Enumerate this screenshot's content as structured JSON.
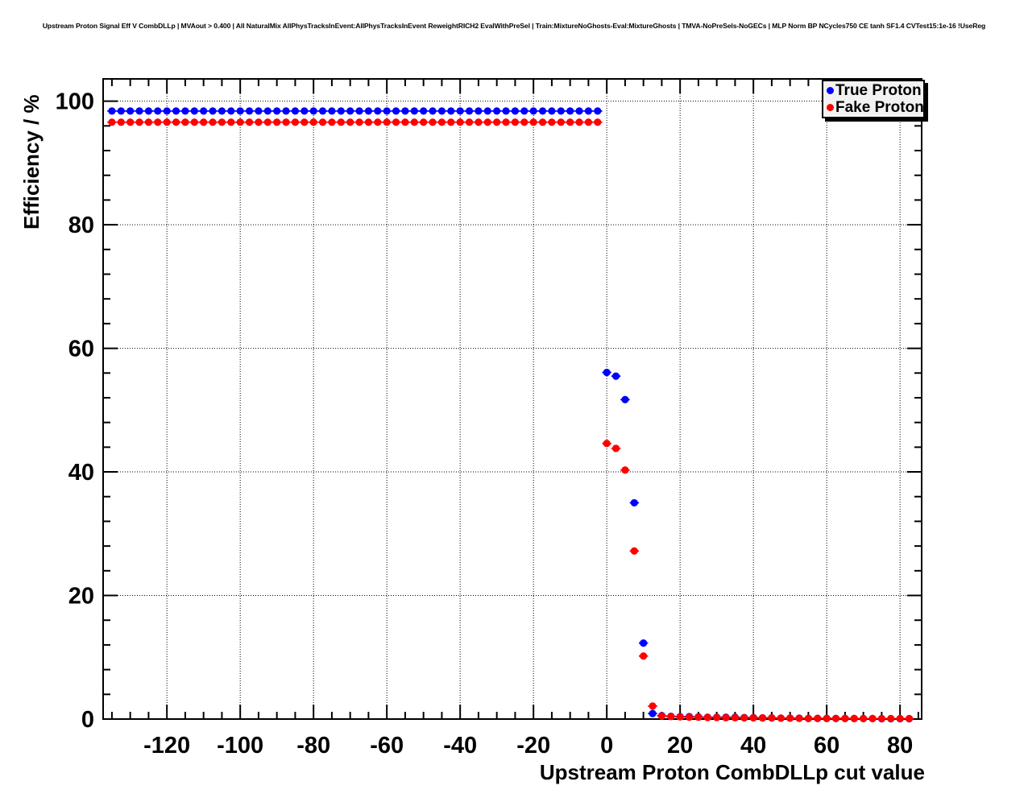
{
  "title": "Upstream Proton Signal Eff V CombDLLp | MVAout > 0.400 | All NaturalMix AllPhysTracksInEvent:AllPhysTracksInEvent ReweightRICH2 EvalWithPreSel | Train:MixtureNoGhosts-Eval:MixtureGhosts | TMVA-NoPreSels-NoGECs | MLP Norm BP NCycles750 CE tanh SF1.4 CVTest15:1e-16 !UseReg",
  "legend": {
    "entries": [
      {
        "label": "True Proton",
        "color": "#0000ff",
        "marker": "filled-circle"
      },
      {
        "label": "Fake Proton",
        "color": "#ff0000",
        "marker": "filled-circle"
      }
    ]
  },
  "colors": {
    "true_proton": "#0000ff",
    "fake_proton": "#ff0000",
    "frame": "#000000",
    "grid": "#000000",
    "background": "#ffffff",
    "legend_fill": "#f2f2f2"
  },
  "chart_data": {
    "type": "scatter",
    "title": "Upstream Proton Signal Eff V CombDLLp | MVAout > 0.400 | All NaturalMix AllPhysTracksInEvent:AllPhysTracksInEvent ReweightRICH2 EvalWithPreSel | Train:MixtureNoGhosts-Eval:MixtureGhosts | TMVA-NoPreSels-NoGECs | MLP Norm BP NCycles750 CE tanh SF1.4 CVTest15:1e-16 !UseReg",
    "xlabel": "Upstream Proton CombDLLp cut value",
    "ylabel": "Efficiency / %",
    "xlim": [
      -137.4,
      85.9
    ],
    "ylim": [
      0,
      103.6
    ],
    "xticks": [
      -120,
      -100,
      -80,
      -60,
      -40,
      -20,
      0,
      20,
      40,
      60,
      80
    ],
    "yticks": [
      0,
      20,
      40,
      60,
      80,
      100
    ],
    "x_minor_step": 5,
    "y_minor_step": 4,
    "grid": true,
    "legend_position": "top-right",
    "marker_style": "filled-circle",
    "x_error_half_width": 1.25,
    "series": [
      {
        "name": "True Proton",
        "color": "#0000ff",
        "points": [
          [
            -135,
            98.4
          ],
          [
            -132.5,
            98.4
          ],
          [
            -130,
            98.4
          ],
          [
            -127.5,
            98.4
          ],
          [
            -125,
            98.4
          ],
          [
            -122.5,
            98.4
          ],
          [
            -120,
            98.4
          ],
          [
            -117.5,
            98.4
          ],
          [
            -115,
            98.4
          ],
          [
            -112.5,
            98.4
          ],
          [
            -110,
            98.4
          ],
          [
            -107.5,
            98.4
          ],
          [
            -105,
            98.4
          ],
          [
            -102.5,
            98.4
          ],
          [
            -100,
            98.4
          ],
          [
            -97.5,
            98.4
          ],
          [
            -95,
            98.4
          ],
          [
            -92.5,
            98.4
          ],
          [
            -90,
            98.4
          ],
          [
            -87.5,
            98.4
          ],
          [
            -85,
            98.4
          ],
          [
            -82.5,
            98.4
          ],
          [
            -80,
            98.4
          ],
          [
            -77.5,
            98.4
          ],
          [
            -75,
            98.4
          ],
          [
            -72.5,
            98.4
          ],
          [
            -70,
            98.4
          ],
          [
            -67.5,
            98.4
          ],
          [
            -65,
            98.4
          ],
          [
            -62.5,
            98.4
          ],
          [
            -60,
            98.4
          ],
          [
            -57.5,
            98.4
          ],
          [
            -55,
            98.4
          ],
          [
            -52.5,
            98.4
          ],
          [
            -50,
            98.4
          ],
          [
            -47.5,
            98.4
          ],
          [
            -45,
            98.4
          ],
          [
            -42.5,
            98.4
          ],
          [
            -40,
            98.4
          ],
          [
            -37.5,
            98.4
          ],
          [
            -35,
            98.4
          ],
          [
            -32.5,
            98.4
          ],
          [
            -30,
            98.4
          ],
          [
            -27.5,
            98.4
          ],
          [
            -25,
            98.4
          ],
          [
            -22.5,
            98.4
          ],
          [
            -20,
            98.4
          ],
          [
            -17.5,
            98.4
          ],
          [
            -15,
            98.4
          ],
          [
            -12.5,
            98.4
          ],
          [
            -10,
            98.4
          ],
          [
            -7.5,
            98.4
          ],
          [
            -5,
            98.4
          ],
          [
            -2.5,
            98.4
          ],
          [
            0,
            56.1
          ],
          [
            2.5,
            55.5
          ],
          [
            5,
            51.7
          ],
          [
            7.5,
            35.0
          ],
          [
            10,
            12.3
          ],
          [
            12.5,
            0.9
          ],
          [
            15,
            0.55
          ],
          [
            17.5,
            0.45
          ],
          [
            20,
            0.4
          ],
          [
            22.5,
            0.4
          ],
          [
            25,
            0.35
          ],
          [
            27.5,
            0.3
          ],
          [
            30,
            0.3
          ],
          [
            32.5,
            0.3
          ],
          [
            35,
            0.3
          ],
          [
            37.5,
            0.25
          ],
          [
            40,
            0.25
          ],
          [
            42.5,
            0.2
          ],
          [
            45,
            0.2
          ],
          [
            47.5,
            0.15
          ],
          [
            50,
            0.15
          ],
          [
            52.5,
            0.15
          ],
          [
            55,
            0.1
          ],
          [
            57.5,
            0.1
          ],
          [
            60,
            0.1
          ],
          [
            62.5,
            0.1
          ],
          [
            65,
            0.1
          ],
          [
            67.5,
            0.08
          ],
          [
            70,
            0.08
          ],
          [
            72.5,
            0.08
          ],
          [
            75,
            0.05
          ],
          [
            77.5,
            0.05
          ],
          [
            80,
            0.05
          ],
          [
            82.5,
            0.05
          ]
        ]
      },
      {
        "name": "Fake Proton",
        "color": "#ff0000",
        "points": [
          [
            -135,
            96.6
          ],
          [
            -132.5,
            96.6
          ],
          [
            -130,
            96.6
          ],
          [
            -127.5,
            96.6
          ],
          [
            -125,
            96.6
          ],
          [
            -122.5,
            96.6
          ],
          [
            -120,
            96.6
          ],
          [
            -117.5,
            96.6
          ],
          [
            -115,
            96.6
          ],
          [
            -112.5,
            96.6
          ],
          [
            -110,
            96.6
          ],
          [
            -107.5,
            96.6
          ],
          [
            -105,
            96.6
          ],
          [
            -102.5,
            96.6
          ],
          [
            -100,
            96.6
          ],
          [
            -97.5,
            96.6
          ],
          [
            -95,
            96.6
          ],
          [
            -92.5,
            96.6
          ],
          [
            -90,
            96.6
          ],
          [
            -87.5,
            96.6
          ],
          [
            -85,
            96.6
          ],
          [
            -82.5,
            96.6
          ],
          [
            -80,
            96.6
          ],
          [
            -77.5,
            96.6
          ],
          [
            -75,
            96.6
          ],
          [
            -72.5,
            96.6
          ],
          [
            -70,
            96.6
          ],
          [
            -67.5,
            96.6
          ],
          [
            -65,
            96.6
          ],
          [
            -62.5,
            96.6
          ],
          [
            -60,
            96.6
          ],
          [
            -57.5,
            96.6
          ],
          [
            -55,
            96.6
          ],
          [
            -52.5,
            96.6
          ],
          [
            -50,
            96.6
          ],
          [
            -47.5,
            96.6
          ],
          [
            -45,
            96.6
          ],
          [
            -42.5,
            96.6
          ],
          [
            -40,
            96.6
          ],
          [
            -37.5,
            96.6
          ],
          [
            -35,
            96.6
          ],
          [
            -32.5,
            96.6
          ],
          [
            -30,
            96.6
          ],
          [
            -27.5,
            96.6
          ],
          [
            -25,
            96.6
          ],
          [
            -22.5,
            96.6
          ],
          [
            -20,
            96.6
          ],
          [
            -17.5,
            96.6
          ],
          [
            -15,
            96.6
          ],
          [
            -12.5,
            96.6
          ],
          [
            -10,
            96.6
          ],
          [
            -7.5,
            96.6
          ],
          [
            -5,
            96.6
          ],
          [
            -2.5,
            96.6
          ],
          [
            0,
            44.6
          ],
          [
            2.5,
            43.8
          ],
          [
            5,
            40.3
          ],
          [
            7.5,
            27.2
          ],
          [
            10,
            10.2
          ],
          [
            12.5,
            2.1
          ],
          [
            15,
            0.5
          ],
          [
            17.5,
            0.4
          ],
          [
            20,
            0.35
          ],
          [
            22.5,
            0.3
          ],
          [
            25,
            0.3
          ],
          [
            27.5,
            0.25
          ],
          [
            30,
            0.25
          ],
          [
            32.5,
            0.22
          ],
          [
            35,
            0.22
          ],
          [
            37.5,
            0.2
          ],
          [
            40,
            0.2
          ],
          [
            42.5,
            0.18
          ],
          [
            45,
            0.18
          ],
          [
            47.5,
            0.15
          ],
          [
            50,
            0.15
          ],
          [
            52.5,
            0.12
          ],
          [
            55,
            0.12
          ],
          [
            57.5,
            0.12
          ],
          [
            60,
            0.1
          ],
          [
            62.5,
            0.1
          ],
          [
            65,
            0.1
          ],
          [
            67.5,
            0.1
          ],
          [
            70,
            0.08
          ],
          [
            72.5,
            0.08
          ],
          [
            75,
            0.08
          ],
          [
            77.5,
            0.08
          ],
          [
            80,
            0.08
          ],
          [
            82.5,
            0.08
          ]
        ]
      }
    ]
  }
}
